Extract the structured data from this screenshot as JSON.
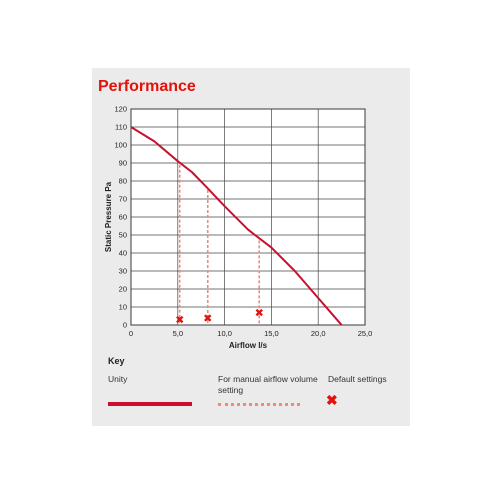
{
  "title": "Performance",
  "chart_data": {
    "type": "line",
    "xlabel": "Airflow l/s",
    "ylabel": "Static Pressure Pa",
    "xlim": [
      0,
      25
    ],
    "ylim": [
      0,
      120
    ],
    "x_ticks": [
      0,
      5,
      10,
      15,
      20,
      25
    ],
    "x_tick_labels": [
      "0",
      "5,0",
      "10,0",
      "15,0",
      "20,0",
      "25,0"
    ],
    "y_ticks": [
      0,
      10,
      20,
      30,
      40,
      50,
      60,
      70,
      80,
      90,
      100,
      110,
      120
    ],
    "grid": true,
    "series": [
      {
        "name": "Unity",
        "style": "solid",
        "color": "#c8102e",
        "x": [
          0,
          2.5,
          5.0,
          6.5,
          8.0,
          10.0,
          12.5,
          15.0,
          17.5,
          20.0,
          21.5,
          22.5
        ],
        "y": [
          110,
          102,
          91,
          85,
          77,
          66,
          53,
          43,
          30,
          15,
          6,
          0
        ]
      }
    ],
    "manual_settings": [
      {
        "x": 5.2,
        "y": 89
      },
      {
        "x": 8.2,
        "y": 75
      },
      {
        "x": 13.7,
        "y": 47
      }
    ],
    "default_settings": [
      {
        "x": 5.2,
        "y": 3
      },
      {
        "x": 8.2,
        "y": 4
      },
      {
        "x": 13.7,
        "y": 7
      }
    ]
  },
  "key": {
    "title": "Key",
    "unity": "Unity",
    "manual": "For manual airflow volume setting",
    "default": "Default settings",
    "colors": {
      "curve": "#c8102e",
      "dashed": "#f08a78",
      "marker": "#e3120b"
    }
  }
}
